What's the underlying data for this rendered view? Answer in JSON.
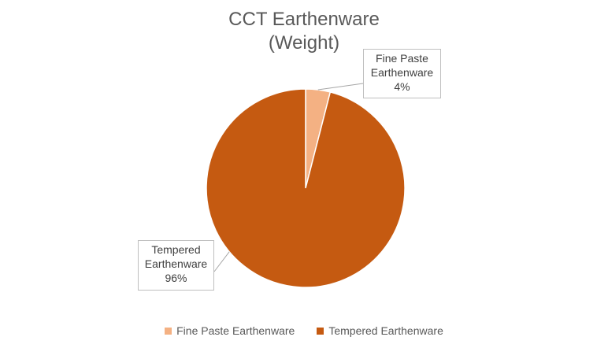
{
  "chart_data": {
    "type": "pie",
    "title_lines": [
      "CCT Earthenware",
      "(Weight)"
    ],
    "categories": [
      "Fine Paste Earthenware",
      "Tempered Earthenware"
    ],
    "values": [
      4,
      96
    ],
    "data_labels": [
      {
        "name_lines": [
          "Fine Paste",
          "Earthenware"
        ],
        "value": "4%"
      },
      {
        "name_lines": [
          "Tempered",
          "Earthenware"
        ],
        "value": "96%"
      }
    ],
    "colors": [
      "#F4B183",
      "#C55A11"
    ],
    "legend_position": "bottom",
    "start_angle_deg": 0,
    "direction": "clockwise"
  }
}
